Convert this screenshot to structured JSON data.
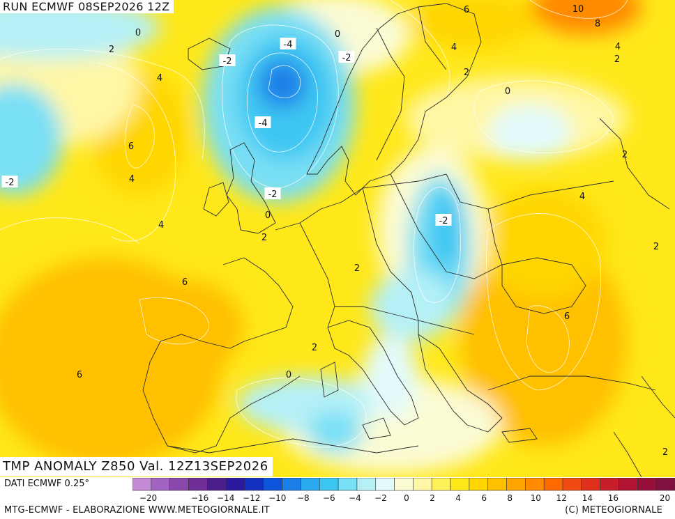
{
  "header": {
    "run_label": "RUN ECMWF 08SEP2026 12Z",
    "valid_label": "TMP ANOMALY Z850 Val. 12Z13SEP2026"
  },
  "footer": {
    "data_source": "DATI ECMWF 0.25°",
    "credit_left": "MTG-ECMWF - ELABORAZIONE WWW.METEOGIORNALE.IT",
    "credit_right": "(C) METEOGIORNALE"
  },
  "legend": {
    "ticks": [
      "-20",
      "-18",
      "-16",
      "-14",
      "-12",
      "-10",
      "-8",
      "-6",
      "-4",
      "-2",
      "0",
      "2",
      "4",
      "6",
      "8",
      "10",
      "12",
      "14",
      "16",
      "18",
      "20"
    ],
    "tick_labels_shown": [
      "-20",
      "-16",
      "-14",
      "-12",
      "-10",
      "-8",
      "-6",
      "-4",
      "-2",
      "0",
      "2",
      "4",
      "6",
      "8",
      "10",
      "12",
      "14",
      "16",
      "20"
    ],
    "colors": [
      "#c68bd6",
      "#a264c2",
      "#8a48ad",
      "#6f2e96",
      "#4a1f8c",
      "#2a1aa0",
      "#1430c0",
      "#0d55dd",
      "#1b7fe8",
      "#2aa8f0",
      "#3cc6f2",
      "#79dff5",
      "#b5f0f7",
      "#e2fafb",
      "#fbfbd4",
      "#fff7a6",
      "#fff15a",
      "#ffe81a",
      "#ffd600",
      "#ffc000",
      "#ffa500",
      "#ff8a00",
      "#ff6a00",
      "#f04a10",
      "#e0301c",
      "#c81e2a",
      "#b01432",
      "#98103a",
      "#80103e"
    ]
  },
  "map": {
    "contour_labels": [
      {
        "text": "0"
      },
      {
        "text": "2"
      },
      {
        "text": "4"
      },
      {
        "text": "6"
      },
      {
        "text": "4"
      },
      {
        "text": "4"
      },
      {
        "text": "-2"
      },
      {
        "text": "6"
      },
      {
        "text": "6"
      },
      {
        "text": "-2"
      },
      {
        "text": "-4"
      },
      {
        "text": "0"
      },
      {
        "text": "-2"
      },
      {
        "text": "-4"
      },
      {
        "text": "-2"
      },
      {
        "text": "0"
      },
      {
        "text": "2"
      },
      {
        "text": "6"
      },
      {
        "text": "4"
      },
      {
        "text": "2"
      },
      {
        "text": "0"
      },
      {
        "text": "-2"
      },
      {
        "text": "2"
      },
      {
        "text": "2"
      },
      {
        "text": "0"
      },
      {
        "text": "10"
      },
      {
        "text": "8"
      },
      {
        "text": "4"
      },
      {
        "text": "2"
      },
      {
        "text": "2"
      },
      {
        "text": "4"
      },
      {
        "text": "2"
      },
      {
        "text": "6"
      },
      {
        "text": "2"
      }
    ]
  }
}
